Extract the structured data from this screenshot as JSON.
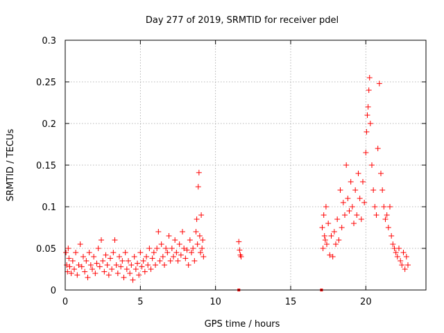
{
  "chart_data": {
    "type": "scatter",
    "title": "Day 277 of 2019, SRMTID for receiver pdel",
    "xlabel": "GPS time / hours",
    "ylabel": "SRMTID / TECUs",
    "xlim": [
      0,
      24
    ],
    "ylim": [
      0,
      0.3
    ],
    "grid": true,
    "x_ticks": [
      0,
      5,
      10,
      15,
      20
    ],
    "x_tick_labels": [
      "0",
      "5",
      "10",
      "15",
      "20"
    ],
    "y_ticks": [
      0,
      0.05,
      0.1,
      0.15,
      0.2,
      0.25,
      0.3
    ],
    "y_tick_labels": [
      "0",
      "0.05",
      "0.1",
      "0.15",
      "0.2",
      "0.25",
      "0.3"
    ],
    "marker": "plus",
    "color": "#ff0000",
    "series": [
      {
        "name": "SRMTID",
        "points": [
          [
            0.05,
            0.045
          ],
          [
            0.1,
            0.03
          ],
          [
            0.15,
            0.022
          ],
          [
            0.2,
            0.05
          ],
          [
            0.25,
            0.038
          ],
          [
            0.3,
            0.028
          ],
          [
            0.4,
            0.02
          ],
          [
            0.5,
            0.035
          ],
          [
            0.6,
            0.025
          ],
          [
            0.7,
            0.045
          ],
          [
            0.8,
            0.018
          ],
          [
            0.9,
            0.03
          ],
          [
            1.0,
            0.055
          ],
          [
            1.1,
            0.028
          ],
          [
            1.2,
            0.04
          ],
          [
            1.3,
            0.022
          ],
          [
            1.4,
            0.035
          ],
          [
            1.5,
            0.015
          ],
          [
            1.6,
            0.045
          ],
          [
            1.7,
            0.03
          ],
          [
            1.8,
            0.025
          ],
          [
            1.9,
            0.04
          ],
          [
            2.0,
            0.02
          ],
          [
            2.1,
            0.032
          ],
          [
            2.2,
            0.05
          ],
          [
            2.3,
            0.028
          ],
          [
            2.4,
            0.06
          ],
          [
            2.5,
            0.035
          ],
          [
            2.6,
            0.022
          ],
          [
            2.7,
            0.042
          ],
          [
            2.8,
            0.03
          ],
          [
            2.9,
            0.018
          ],
          [
            3.0,
            0.038
          ],
          [
            3.1,
            0.025
          ],
          [
            3.2,
            0.045
          ],
          [
            3.3,
            0.06
          ],
          [
            3.4,
            0.03
          ],
          [
            3.5,
            0.02
          ],
          [
            3.6,
            0.04
          ],
          [
            3.7,
            0.028
          ],
          [
            3.8,
            0.035
          ],
          [
            3.9,
            0.015
          ],
          [
            4.0,
            0.045
          ],
          [
            4.1,
            0.025
          ],
          [
            4.2,
            0.035
          ],
          [
            4.3,
            0.02
          ],
          [
            4.4,
            0.03
          ],
          [
            4.5,
            0.012
          ],
          [
            4.6,
            0.04
          ],
          [
            4.7,
            0.025
          ],
          [
            4.8,
            0.032
          ],
          [
            4.9,
            0.018
          ],
          [
            5.0,
            0.045
          ],
          [
            5.1,
            0.028
          ],
          [
            5.2,
            0.035
          ],
          [
            5.3,
            0.022
          ],
          [
            5.4,
            0.04
          ],
          [
            5.5,
            0.03
          ],
          [
            5.6,
            0.05
          ],
          [
            5.7,
            0.025
          ],
          [
            5.8,
            0.038
          ],
          [
            5.9,
            0.045
          ],
          [
            6.0,
            0.03
          ],
          [
            6.1,
            0.05
          ],
          [
            6.2,
            0.07
          ],
          [
            6.3,
            0.035
          ],
          [
            6.4,
            0.055
          ],
          [
            6.5,
            0.04
          ],
          [
            6.6,
            0.03
          ],
          [
            6.7,
            0.05
          ],
          [
            6.8,
            0.045
          ],
          [
            6.9,
            0.065
          ],
          [
            7.0,
            0.035
          ],
          [
            7.1,
            0.05
          ],
          [
            7.2,
            0.04
          ],
          [
            7.3,
            0.06
          ],
          [
            7.4,
            0.045
          ],
          [
            7.5,
            0.035
          ],
          [
            7.6,
            0.055
          ],
          [
            7.7,
            0.042
          ],
          [
            7.8,
            0.07
          ],
          [
            7.9,
            0.05
          ],
          [
            8.0,
            0.038
          ],
          [
            8.1,
            0.048
          ],
          [
            8.2,
            0.03
          ],
          [
            8.3,
            0.06
          ],
          [
            8.4,
            0.045
          ],
          [
            8.5,
            0.05
          ],
          [
            8.6,
            0.035
          ],
          [
            8.7,
            0.07
          ],
          [
            8.75,
            0.085
          ],
          [
            8.8,
            0.055
          ],
          [
            8.85,
            0.124
          ],
          [
            8.9,
            0.141
          ],
          [
            8.95,
            0.065
          ],
          [
            9.0,
            0.045
          ],
          [
            9.05,
            0.09
          ],
          [
            9.1,
            0.05
          ],
          [
            9.15,
            0.06
          ],
          [
            9.2,
            0.04
          ],
          [
            11.55,
            0.058
          ],
          [
            11.6,
            0.048
          ],
          [
            11.65,
            0.042
          ],
          [
            11.7,
            0.04
          ],
          [
            17.1,
            0.075
          ],
          [
            17.15,
            0.05
          ],
          [
            17.2,
            0.09
          ],
          [
            17.25,
            0.065
          ],
          [
            17.3,
            0.06
          ],
          [
            17.35,
            0.1
          ],
          [
            17.4,
            0.055
          ],
          [
            17.5,
            0.08
          ],
          [
            17.6,
            0.042
          ],
          [
            17.7,
            0.065
          ],
          [
            17.8,
            0.04
          ],
          [
            17.9,
            0.07
          ],
          [
            18.0,
            0.055
          ],
          [
            18.1,
            0.085
          ],
          [
            18.2,
            0.06
          ],
          [
            18.3,
            0.12
          ],
          [
            18.4,
            0.075
          ],
          [
            18.5,
            0.105
          ],
          [
            18.6,
            0.09
          ],
          [
            18.7,
            0.15
          ],
          [
            18.8,
            0.11
          ],
          [
            18.9,
            0.095
          ],
          [
            19.0,
            0.13
          ],
          [
            19.1,
            0.1
          ],
          [
            19.2,
            0.08
          ],
          [
            19.3,
            0.12
          ],
          [
            19.4,
            0.09
          ],
          [
            19.5,
            0.14
          ],
          [
            19.6,
            0.11
          ],
          [
            19.7,
            0.085
          ],
          [
            19.8,
            0.13
          ],
          [
            19.9,
            0.105
          ],
          [
            20.0,
            0.165
          ],
          [
            20.05,
            0.19
          ],
          [
            20.1,
            0.21
          ],
          [
            20.15,
            0.22
          ],
          [
            20.2,
            0.24
          ],
          [
            20.25,
            0.255
          ],
          [
            20.3,
            0.2
          ],
          [
            20.4,
            0.15
          ],
          [
            20.5,
            0.12
          ],
          [
            20.6,
            0.1
          ],
          [
            20.7,
            0.09
          ],
          [
            20.8,
            0.17
          ],
          [
            20.9,
            0.248
          ],
          [
            21.0,
            0.14
          ],
          [
            21.1,
            0.12
          ],
          [
            21.2,
            0.1
          ],
          [
            21.3,
            0.085
          ],
          [
            21.4,
            0.09
          ],
          [
            21.5,
            0.075
          ],
          [
            21.6,
            0.1
          ],
          [
            21.7,
            0.065
          ],
          [
            21.8,
            0.055
          ],
          [
            21.9,
            0.05
          ],
          [
            22.0,
            0.045
          ],
          [
            22.1,
            0.04
          ],
          [
            22.2,
            0.05
          ],
          [
            22.3,
            0.035
          ],
          [
            22.4,
            0.03
          ],
          [
            22.5,
            0.045
          ],
          [
            22.6,
            0.025
          ],
          [
            22.7,
            0.04
          ],
          [
            22.8,
            0.03
          ]
        ]
      }
    ],
    "zero_markers": [
      11.55,
      17.05
    ]
  }
}
